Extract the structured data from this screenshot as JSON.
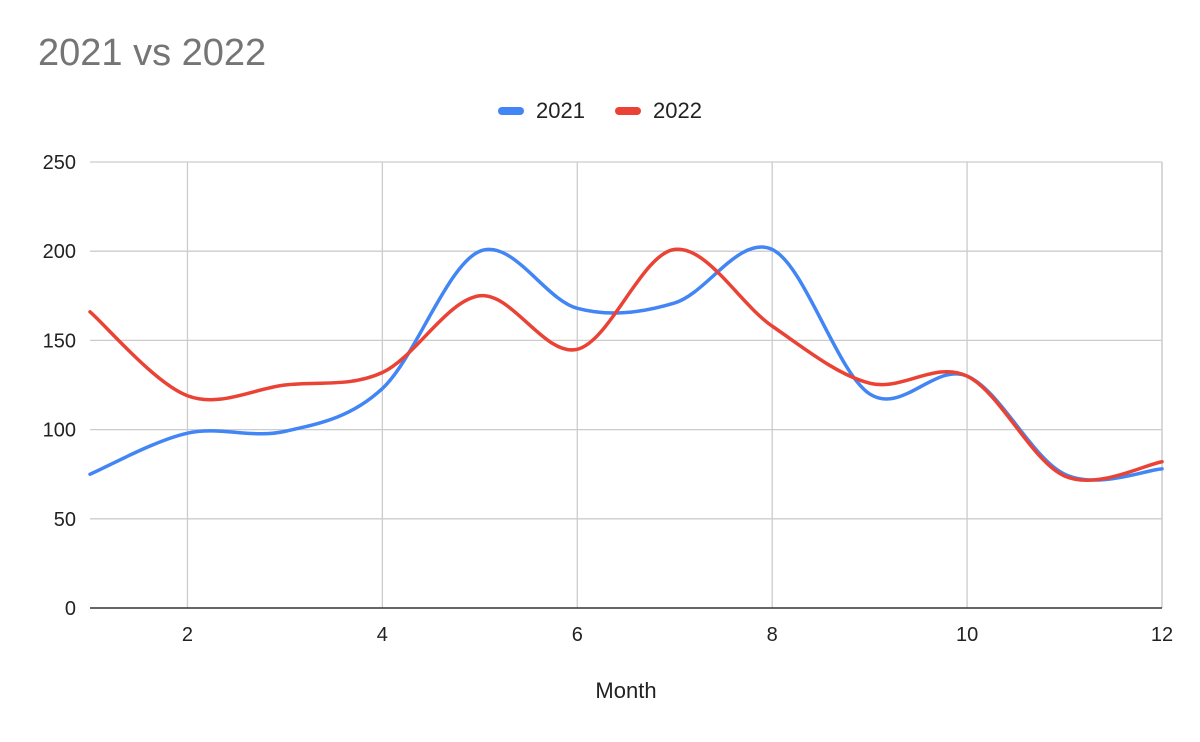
{
  "chart_data": {
    "type": "line",
    "title": "2021 vs 2022",
    "xlabel": "Month",
    "ylabel": "",
    "xlim": [
      1,
      12
    ],
    "ylim": [
      0,
      250
    ],
    "x_ticks": [
      2,
      4,
      6,
      8,
      10,
      12
    ],
    "y_ticks": [
      0,
      50,
      100,
      150,
      200,
      250
    ],
    "grid": true,
    "legend_position": "top",
    "x": [
      1,
      2,
      3,
      4,
      5,
      6,
      7,
      8,
      9,
      10,
      11,
      12
    ],
    "series": [
      {
        "name": "2021",
        "color": "#4285f4",
        "values": [
          75,
          98,
          99,
          123,
          200,
          168,
          171,
          201,
          120,
          130,
          75,
          78
        ]
      },
      {
        "name": "2022",
        "color": "#ea4335",
        "values": [
          166,
          119,
          125,
          132,
          175,
          145,
          201,
          158,
          126,
          130,
          74,
          82
        ]
      }
    ]
  }
}
